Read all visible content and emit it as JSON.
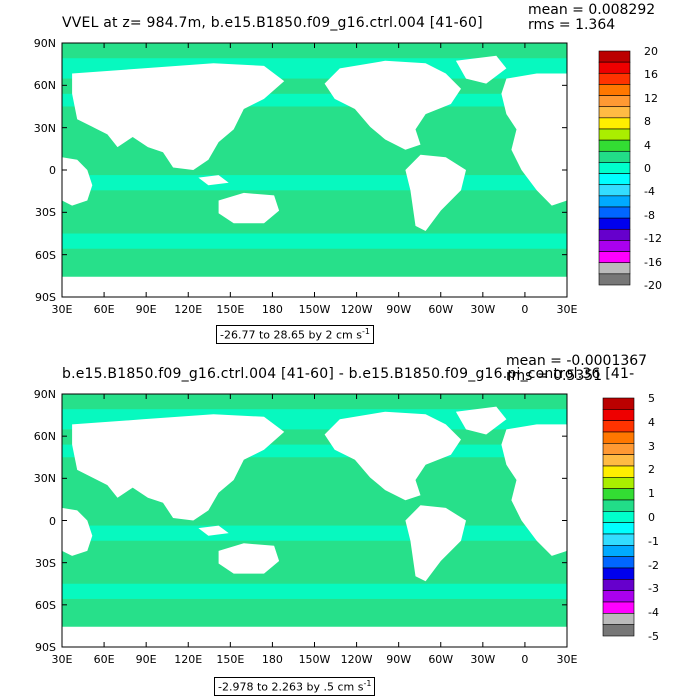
{
  "panels": [
    {
      "title": "VVEL at z= 984.7m, b.e15.B1850.f09_g16.ctrl.004 [41-60]",
      "mean": "mean = 0.008292",
      "rms": "rms = 1.364",
      "range_text": "-26.77 to 28.65 by 2 cm s",
      "range_unit_exp": "-1",
      "colorbar_labels": [
        "20",
        "16",
        "12",
        "8",
        "4",
        "0",
        "-4",
        "-8",
        "-12",
        "-16",
        "-20"
      ],
      "colors": [
        "#bb0000",
        "#ee0000",
        "#ff3300",
        "#ff7700",
        "#ff9933",
        "#ffbb44",
        "#ffee00",
        "#aaee00",
        "#33dd33",
        "#22dd88",
        "#00ffcc",
        "#00ffff",
        "#33ddff",
        "#00aaff",
        "#0066ff",
        "#0000ee",
        "#6600cc",
        "#aa00ee",
        "#ff00ff",
        "#bbbbbb",
        "#777777"
      ]
    },
    {
      "title": "b.e15.B1850.f09_g16.ctrl.004 [41-60] - b.e15.B1850.f09_g16.pi_control.36 [41-",
      "mean": "mean = -0.0001367",
      "rms": "rms = 0.5351",
      "range_text": "-2.978 to 2.263 by .5 cm s",
      "range_unit_exp": "-1",
      "colorbar_labels": [
        "5",
        "4",
        "3",
        "2",
        "1",
        "0",
        "-1",
        "-2",
        "-3",
        "-4",
        "-5"
      ],
      "colors": [
        "#bb0000",
        "#ee0000",
        "#ff3300",
        "#ff7700",
        "#ff9933",
        "#ffbb44",
        "#ffee00",
        "#aaee00",
        "#33dd33",
        "#22dd88",
        "#00ffcc",
        "#00ffff",
        "#33ddff",
        "#00aaff",
        "#0066ff",
        "#0000ee",
        "#6600cc",
        "#aa00ee",
        "#ff00ff",
        "#bbbbbb",
        "#777777"
      ]
    }
  ],
  "lat_labels": [
    "90N",
    "60N",
    "30N",
    "0",
    "30S",
    "60S",
    "90S"
  ],
  "lon_labels": [
    "30E",
    "60E",
    "90E",
    "120E",
    "150E",
    "180",
    "150W",
    "120W",
    "90W",
    "60W",
    "30W",
    "0",
    "30E"
  ]
}
